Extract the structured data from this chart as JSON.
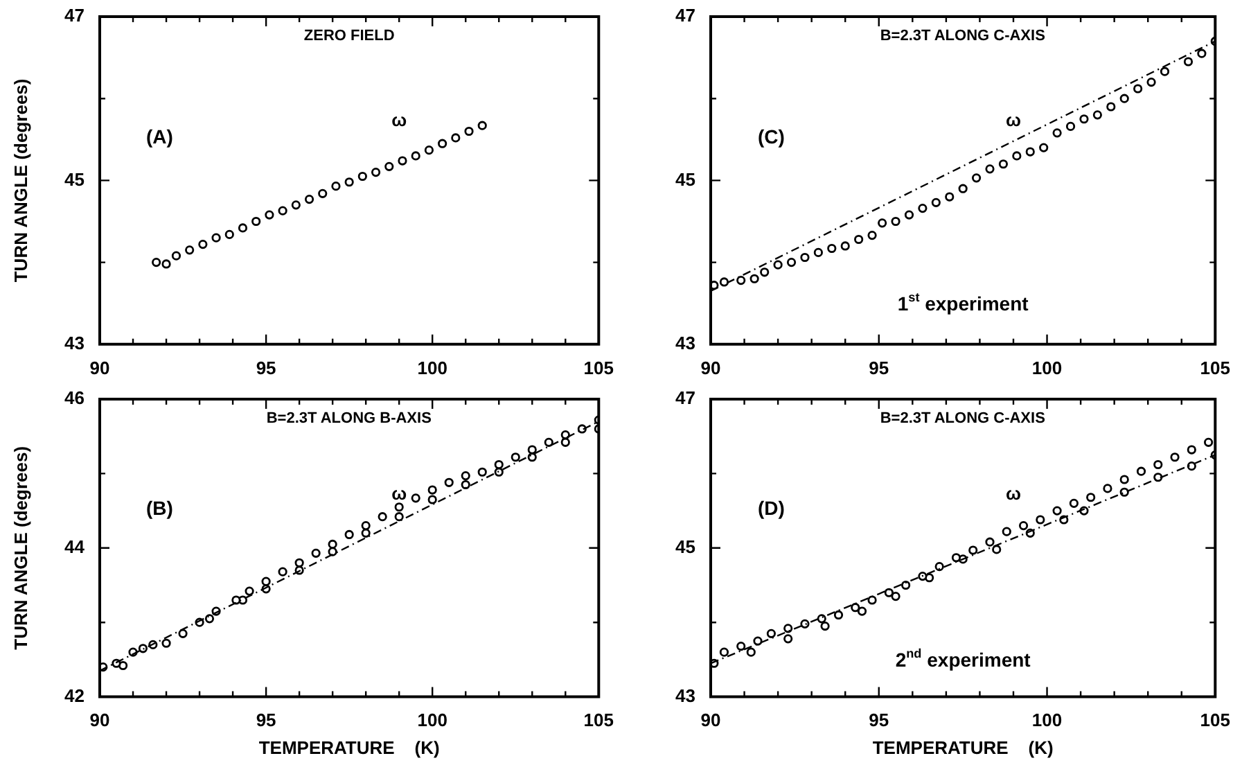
{
  "chart_data": [
    {
      "type": "scatter",
      "title": "ZERO FIELD",
      "ylabel": "TURN ANGLE (degrees)",
      "annotations": [
        "(A)",
        "ω"
      ],
      "marker": "circle",
      "xlim": [
        90,
        105
      ],
      "xticks": [
        90,
        {
          "value": 91,
          "label": null
        },
        {
          "value": 92,
          "label": null
        },
        {
          "value": 93,
          "label": null
        },
        {
          "value": 94,
          "label": null
        },
        95,
        {
          "value": 96,
          "label": null
        },
        {
          "value": 97,
          "label": null
        },
        {
          "value": 98,
          "label": null
        },
        {
          "value": 99,
          "label": null
        },
        100,
        {
          "value": 101,
          "label": null
        },
        {
          "value": 102,
          "label": null
        },
        {
          "value": 103,
          "label": null
        },
        {
          "value": 104,
          "label": null
        },
        105
      ],
      "ylim": [
        43,
        47
      ],
      "yticks": [
        43,
        {
          "value": 44,
          "label": null
        },
        45,
        {
          "value": 46,
          "label": null
        },
        47
      ],
      "series": [
        {
          "color": "#000000",
          "x": [
            91.7,
            92.0,
            92.3,
            92.7,
            93.1,
            93.5,
            93.9,
            94.3,
            94.7,
            95.1,
            95.5,
            95.9,
            96.3,
            96.7,
            97.1,
            97.5,
            97.9,
            98.3,
            98.7,
            99.1,
            99.5,
            99.9,
            100.3,
            100.7,
            101.1,
            101.5
          ],
          "values": [
            44.0,
            43.98,
            44.08,
            44.15,
            44.22,
            44.3,
            44.34,
            44.42,
            44.5,
            44.58,
            44.63,
            44.7,
            44.77,
            44.84,
            44.93,
            44.98,
            45.05,
            45.1,
            45.17,
            45.24,
            45.3,
            45.37,
            45.45,
            45.52,
            45.6,
            45.67
          ]
        }
      ]
    },
    {
      "type": "scatter",
      "title": "B=2.3T ALONG C-AXIS",
      "annotations": [
        "(C)",
        "ω",
        "1$^{st}$ experiment"
      ],
      "marker": "circle",
      "xlim": [
        90,
        105
      ],
      "xticks": [
        90,
        {
          "value": 91,
          "label": null
        },
        {
          "value": 92,
          "label": null
        },
        {
          "value": 93,
          "label": null
        },
        {
          "value": 94,
          "label": null
        },
        95,
        {
          "value": 96,
          "label": null
        },
        {
          "value": 97,
          "label": null
        },
        {
          "value": 98,
          "label": null
        },
        {
          "value": 99,
          "label": null
        },
        100,
        {
          "value": 101,
          "label": null
        },
        {
          "value": 102,
          "label": null
        },
        {
          "value": 103,
          "label": null
        },
        {
          "value": 104,
          "label": null
        },
        105
      ],
      "ylim": [
        43,
        47
      ],
      "yticks": [
        43,
        {
          "value": 44,
          "label": null
        },
        45,
        {
          "value": 46,
          "label": null
        },
        47
      ],
      "series": [
        {
          "color": "#000000",
          "x": [
            90.1,
            90.4,
            90.9,
            91.3,
            91.6,
            92.0,
            92.4,
            92.8,
            93.2,
            93.6,
            94.0,
            94.4,
            94.8,
            95.1,
            95.5,
            95.9,
            96.3,
            96.7,
            97.1,
            97.5,
            97.9,
            98.3,
            98.7,
            99.1,
            99.5,
            99.9,
            100.3,
            100.7,
            101.1,
            101.5,
            101.9,
            102.3,
            102.7,
            103.1,
            103.5,
            104.2,
            104.6,
            105.0
          ],
          "values": [
            43.72,
            43.76,
            43.78,
            43.8,
            43.88,
            43.97,
            44.0,
            44.06,
            44.12,
            44.17,
            44.2,
            44.28,
            44.33,
            44.48,
            44.5,
            44.58,
            44.66,
            44.73,
            44.8,
            44.9,
            45.03,
            45.14,
            45.2,
            45.3,
            45.35,
            45.4,
            45.58,
            45.66,
            45.75,
            45.8,
            45.9,
            46.0,
            46.12,
            46.2,
            46.33,
            46.45,
            46.55,
            46.7
          ]
        },
        {
          "type": "line",
          "color": "#000000",
          "line_style": "dashed",
          "marker": "none",
          "x": [
            90,
            105
          ],
          "values": [
            43.65,
            46.7
          ]
        }
      ]
    },
    {
      "type": "scatter",
      "title": "B=2.3T ALONG B-AXIS",
      "xlabel": "TEMPERATURE    (K)",
      "ylabel": "TURN ANGLE (degrees)",
      "annotations": [
        "(B)",
        "ω"
      ],
      "marker": "circle",
      "xlim": [
        90,
        105
      ],
      "xticks": [
        90,
        {
          "value": 91,
          "label": null
        },
        {
          "value": 92,
          "label": null
        },
        {
          "value": 93,
          "label": null
        },
        {
          "value": 94,
          "label": null
        },
        95,
        {
          "value": 96,
          "label": null
        },
        {
          "value": 97,
          "label": null
        },
        {
          "value": 98,
          "label": null
        },
        {
          "value": 99,
          "label": null
        },
        100,
        {
          "value": 101,
          "label": null
        },
        {
          "value": 102,
          "label": null
        },
        {
          "value": 103,
          "label": null
        },
        {
          "value": 104,
          "label": null
        },
        105
      ],
      "ylim": [
        42,
        46
      ],
      "yticks": [
        42,
        {
          "value": 43,
          "label": null
        },
        44,
        {
          "value": 45,
          "label": null
        },
        46
      ],
      "series": [
        {
          "color": "#000000",
          "x": [
            90.1,
            90.5,
            91.0,
            91.6,
            92.5,
            93.0,
            93.5,
            94.1,
            94.5,
            95.0,
            95.5,
            96.0,
            96.5,
            97.0,
            97.5,
            98.0,
            98.5,
            99.0,
            99.5,
            100.0,
            100.5,
            101.0,
            101.5,
            102.0,
            102.5,
            103.0,
            103.5,
            104.0,
            104.5,
            105.0
          ],
          "values": [
            42.4,
            42.45,
            42.6,
            42.7,
            42.85,
            43.0,
            43.15,
            43.3,
            43.42,
            43.55,
            43.68,
            43.8,
            43.93,
            44.05,
            44.18,
            44.3,
            44.42,
            44.55,
            44.67,
            44.78,
            44.88,
            44.97,
            45.02,
            45.12,
            45.22,
            45.32,
            45.42,
            45.52,
            45.6,
            45.72
          ]
        },
        {
          "color": "#000000",
          "x": [
            90.7,
            91.3,
            92.0,
            93.3,
            94.3,
            95.0,
            96.0,
            97.0,
            98.0,
            99.0,
            100.0,
            101.0,
            102.0,
            103.0,
            104.0,
            105.0
          ],
          "values": [
            42.42,
            42.65,
            42.72,
            43.05,
            43.3,
            43.45,
            43.7,
            43.95,
            44.2,
            44.42,
            44.65,
            44.85,
            45.02,
            45.22,
            45.42,
            45.6
          ]
        },
        {
          "type": "line",
          "color": "#000000",
          "line_style": "dashed",
          "marker": "none",
          "x": [
            90,
            105
          ],
          "values": [
            42.35,
            45.7
          ]
        }
      ]
    },
    {
      "type": "scatter",
      "title": "B=2.3T ALONG C-AXIS",
      "xlabel": "TEMPERATURE    (K)",
      "annotations": [
        "(D)",
        "ω",
        "2$^{nd}$ experiment"
      ],
      "marker": "circle",
      "xlim": [
        90,
        105
      ],
      "xticks": [
        90,
        {
          "value": 91,
          "label": null
        },
        {
          "value": 92,
          "label": null
        },
        {
          "value": 93,
          "label": null
        },
        {
          "value": 94,
          "label": null
        },
        95,
        {
          "value": 96,
          "label": null
        },
        {
          "value": 97,
          "label": null
        },
        {
          "value": 98,
          "label": null
        },
        {
          "value": 99,
          "label": null
        },
        100,
        {
          "value": 101,
          "label": null
        },
        {
          "value": 102,
          "label": null
        },
        {
          "value": 103,
          "label": null
        },
        {
          "value": 104,
          "label": null
        },
        105
      ],
      "ylim": [
        43,
        47
      ],
      "yticks": [
        43,
        {
          "value": 44,
          "label": null
        },
        45,
        {
          "value": 46,
          "label": null
        },
        47
      ],
      "series": [
        {
          "color": "#000000",
          "x": [
            90.4,
            90.9,
            91.4,
            91.8,
            92.3,
            92.8,
            93.3,
            93.8,
            94.3,
            94.8,
            95.3,
            95.8,
            96.3,
            96.8,
            97.3,
            97.8,
            98.3,
            98.8,
            99.3,
            99.8,
            100.3,
            100.8,
            101.3,
            101.8,
            102.3,
            102.8,
            103.3,
            103.8,
            104.3,
            104.8
          ],
          "values": [
            43.6,
            43.68,
            43.75,
            43.85,
            43.92,
            43.98,
            44.05,
            44.1,
            44.2,
            44.3,
            44.4,
            44.5,
            44.62,
            44.75,
            44.87,
            44.97,
            45.08,
            45.22,
            45.3,
            45.38,
            45.5,
            45.6,
            45.68,
            45.8,
            45.92,
            46.03,
            46.12,
            46.22,
            46.32,
            46.42
          ]
        },
        {
          "color": "#000000",
          "x": [
            90.1,
            91.2,
            92.3,
            93.4,
            94.5,
            95.5,
            96.5,
            97.5,
            98.5,
            99.5,
            100.5,
            101.1,
            102.3,
            103.3,
            104.3,
            105.0
          ],
          "values": [
            43.45,
            43.6,
            43.78,
            43.95,
            44.15,
            44.35,
            44.6,
            44.85,
            44.98,
            45.2,
            45.38,
            45.5,
            45.75,
            45.95,
            46.1,
            46.25
          ]
        },
        {
          "type": "line",
          "color": "#000000",
          "line_style": "dashed",
          "marker": "none",
          "x": [
            90,
            105
          ],
          "values": [
            43.45,
            46.25
          ]
        }
      ]
    }
  ]
}
